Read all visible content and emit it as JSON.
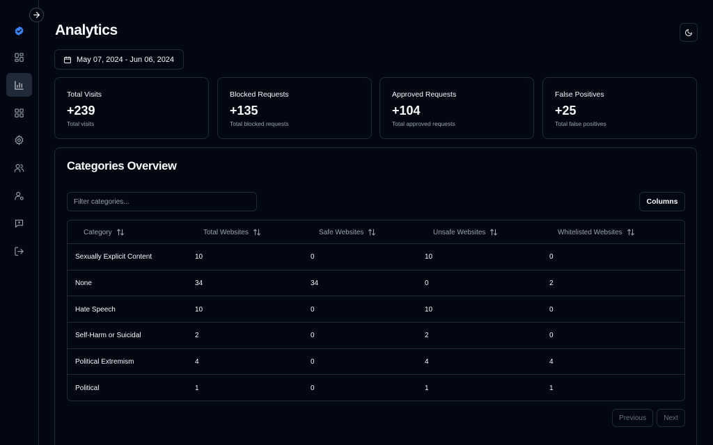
{
  "page": {
    "title": "Analytics"
  },
  "sidebar": {
    "items": [
      {
        "icon": "verified-badge-icon"
      },
      {
        "icon": "dashboard-icon"
      },
      {
        "icon": "bar-chart-icon",
        "active": true
      },
      {
        "icon": "grid-icon"
      },
      {
        "icon": "settings-icon"
      },
      {
        "icon": "users-icon"
      },
      {
        "icon": "user-settings-icon"
      },
      {
        "icon": "chat-icon"
      },
      {
        "icon": "logout-icon"
      }
    ]
  },
  "date_range": {
    "label": "May 07, 2024 - Jun 06, 2024"
  },
  "stats": [
    {
      "label": "Total Visits",
      "value": "+239",
      "sub": "Total visits"
    },
    {
      "label": "Blocked Requests",
      "value": "+135",
      "sub": "Total blocked requests"
    },
    {
      "label": "Approved Requests",
      "value": "+104",
      "sub": "Total approved requests"
    },
    {
      "label": "False Positives",
      "value": "+25",
      "sub": "Total false positives"
    }
  ],
  "categories": {
    "title": "Categories Overview",
    "filter_placeholder": "Filter categories...",
    "columns_label": "Columns",
    "headers": [
      "Category",
      "Total Websites",
      "Safe Websites",
      "Unsafe Websites",
      "Whitelisted Websites"
    ],
    "rows": [
      [
        "Sexually Explicit Content",
        "10",
        "0",
        "10",
        "0"
      ],
      [
        "None",
        "34",
        "34",
        "0",
        "2"
      ],
      [
        "Hate Speech",
        "10",
        "0",
        "10",
        "0"
      ],
      [
        "Self-Harm or Suicidal",
        "2",
        "0",
        "2",
        "0"
      ],
      [
        "Political Extremism",
        "4",
        "0",
        "4",
        "4"
      ],
      [
        "Political",
        "1",
        "0",
        "1",
        "1"
      ]
    ],
    "previous_label": "Previous",
    "next_label": "Next"
  },
  "colors": {
    "accent": "#3b82f6",
    "background": "#030712",
    "border": "#1f2937"
  }
}
